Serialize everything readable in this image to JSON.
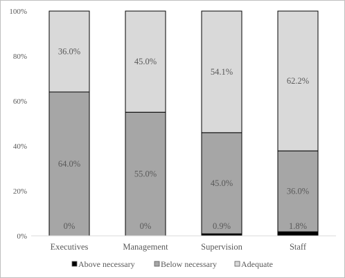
{
  "chart_data": {
    "type": "bar",
    "stacked": true,
    "percent": true,
    "categories": [
      "Executives",
      "Management",
      "Supervision",
      "Staff"
    ],
    "series": [
      {
        "name": "Above necessary",
        "values": [
          0,
          0,
          0.9,
          1.8
        ],
        "labels": [
          "0%",
          "0%",
          "0.9%",
          "1.8%"
        ],
        "color": "#000000"
      },
      {
        "name": "Below necessary",
        "values": [
          64.0,
          55.0,
          45.0,
          36.0
        ],
        "labels": [
          "64.0%",
          "55.0%",
          "45.0%",
          "36.0%"
        ],
        "color": "#a6a6a6"
      },
      {
        "name": "Adequate",
        "values": [
          36.0,
          45.0,
          54.1,
          62.2
        ],
        "labels": [
          "36.0%",
          "45.0%",
          "54.1%",
          "62.2%"
        ],
        "color": "#d9d9d9"
      }
    ],
    "yticks": [
      "0%",
      "20%",
      "40%",
      "60%",
      "80%",
      "100%"
    ],
    "ylim": [
      0,
      100
    ],
    "grid": false,
    "legend_position": "bottom"
  }
}
